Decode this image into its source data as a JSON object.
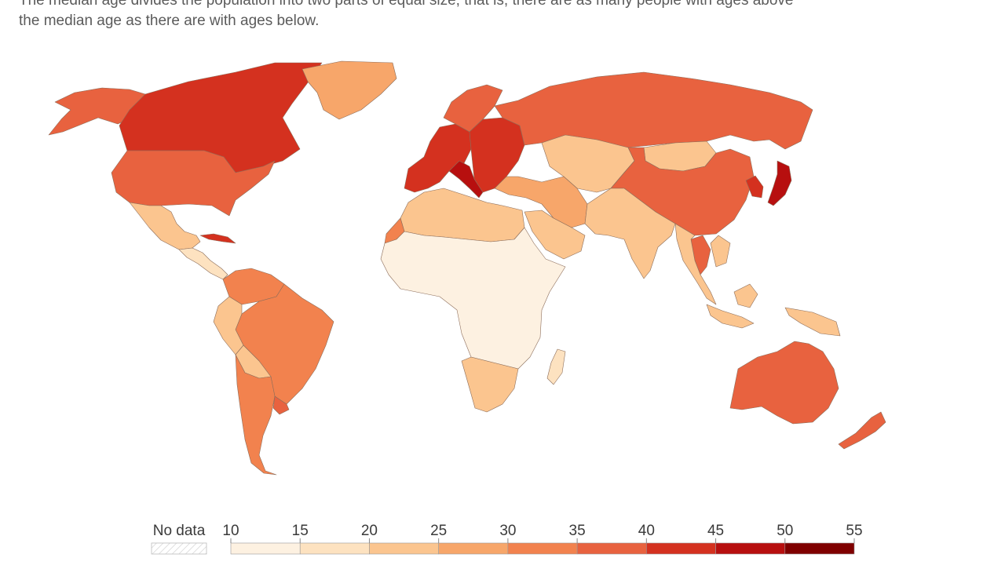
{
  "subtitle": {
    "line1": "The median age divides the population into two parts of equal size; that is, there are as many people with ages above",
    "line2": "the median age as there are with ages below."
  },
  "legend": {
    "no_data_label": "No data",
    "ticks": [
      "10",
      "15",
      "20",
      "25",
      "30",
      "35",
      "40",
      "45",
      "50",
      "55"
    ],
    "colors": [
      "#fdf1e1",
      "#fde2c0",
      "#fbc58f",
      "#f7a66a",
      "#f2824e",
      "#e8623f",
      "#d4311f",
      "#b70f0f",
      "#7f0000"
    ],
    "no_data_pattern_color": "#c8c8c8"
  },
  "regions": [
    {
      "name": "Alaska",
      "color": "#e8623f"
    },
    {
      "name": "Canada",
      "color": "#d4311f"
    },
    {
      "name": "Greenland",
      "color": "#f7a66a"
    },
    {
      "name": "United States",
      "color": "#e8623f"
    },
    {
      "name": "Mexico",
      "color": "#fbc58f"
    },
    {
      "name": "Central America",
      "color": "#fde2c0"
    },
    {
      "name": "Cuba",
      "color": "#d4311f"
    },
    {
      "name": "Colombia & Venezuela",
      "color": "#f2824e"
    },
    {
      "name": "Brazil",
      "color": "#f2824e"
    },
    {
      "name": "Peru",
      "color": "#fbc58f"
    },
    {
      "name": "Bolivia",
      "color": "#fbc58f"
    },
    {
      "name": "Argentina & Chile",
      "color": "#f2824e"
    },
    {
      "name": "Uruguay",
      "color": "#e8623f"
    },
    {
      "name": "Western Europe",
      "color": "#d4311f"
    },
    {
      "name": "Italy",
      "color": "#b70f0f"
    },
    {
      "name": "Scandinavia",
      "color": "#e8623f"
    },
    {
      "name": "Eastern Europe",
      "color": "#d4311f"
    },
    {
      "name": "Russia",
      "color": "#e8623f"
    },
    {
      "name": "Kazakhstan & Central Asia",
      "color": "#fbc58f"
    },
    {
      "name": "Mongolia",
      "color": "#fbc58f"
    },
    {
      "name": "China",
      "color": "#e8623f"
    },
    {
      "name": "Korea",
      "color": "#d4311f"
    },
    {
      "name": "Japan",
      "color": "#b70f0f"
    },
    {
      "name": "Turkey & Iran",
      "color": "#f7a66a"
    },
    {
      "name": "Arabian Peninsula",
      "color": "#fbc58f"
    },
    {
      "name": "South Asia",
      "color": "#fbc58f"
    },
    {
      "name": "Thailand",
      "color": "#e8623f"
    },
    {
      "name": "Southeast Asia",
      "color": "#fbc58f"
    },
    {
      "name": "Indonesia",
      "color": "#fbc58f"
    },
    {
      "name": "Australia",
      "color": "#e8623f"
    },
    {
      "name": "New Zealand",
      "color": "#e8623f"
    },
    {
      "name": "North Africa",
      "color": "#fbc58f"
    },
    {
      "name": "Western Sahara",
      "color": "#f2824e"
    },
    {
      "name": "Sub-Saharan Africa",
      "color": "#fdf1e1"
    },
    {
      "name": "Southern Africa",
      "color": "#fbc58f"
    },
    {
      "name": "Madagascar",
      "color": "#fde2c0"
    }
  ]
}
